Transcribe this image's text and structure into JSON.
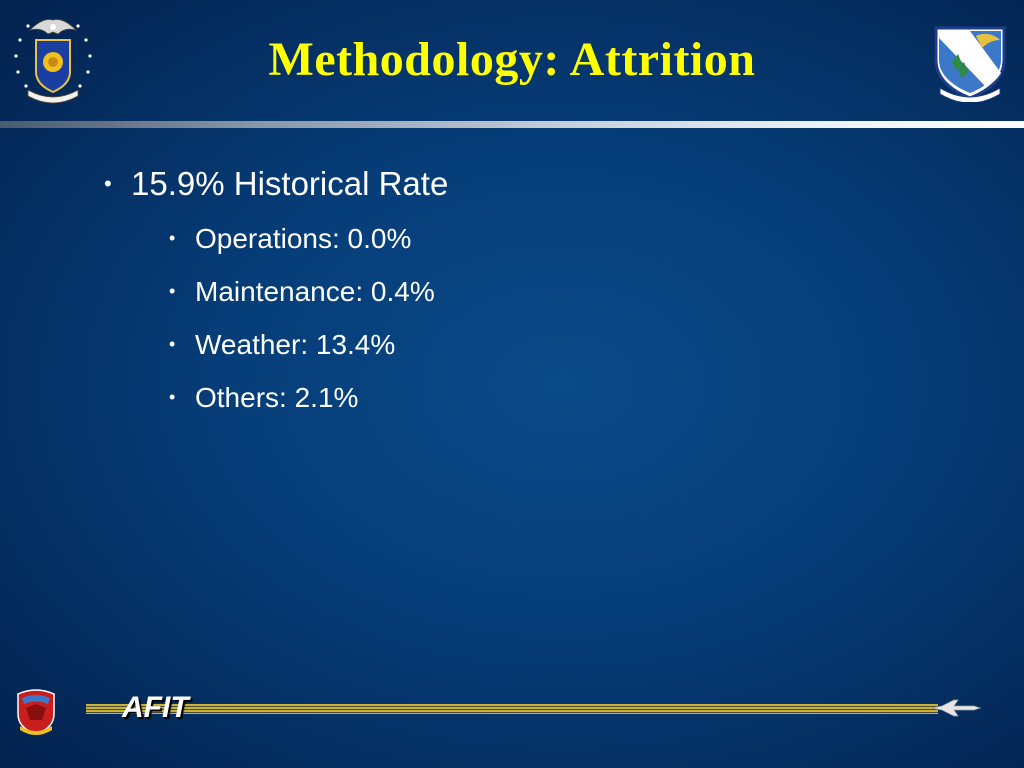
{
  "slide": {
    "title": "Methodology: Attrition",
    "bullets": [
      {
        "text": "15.9% Historical Rate",
        "subitems": [
          "Operations: 0.0%",
          "Maintenance: 0.4%",
          "Weather: 13.4%",
          "Others: 2.1%"
        ]
      }
    ],
    "footer": {
      "label": "AFIT"
    }
  },
  "logos": {
    "left_seal": "air-education-training-command-seal",
    "right_seal": "flying-training-wing-shield",
    "footer_logo": "squadron-patch",
    "footer_icon": "jet-aircraft-icon"
  },
  "colors": {
    "background": "#063d78",
    "title": "#ffff00",
    "text": "#ffffff",
    "footer_bar": "#c8b23a"
  }
}
